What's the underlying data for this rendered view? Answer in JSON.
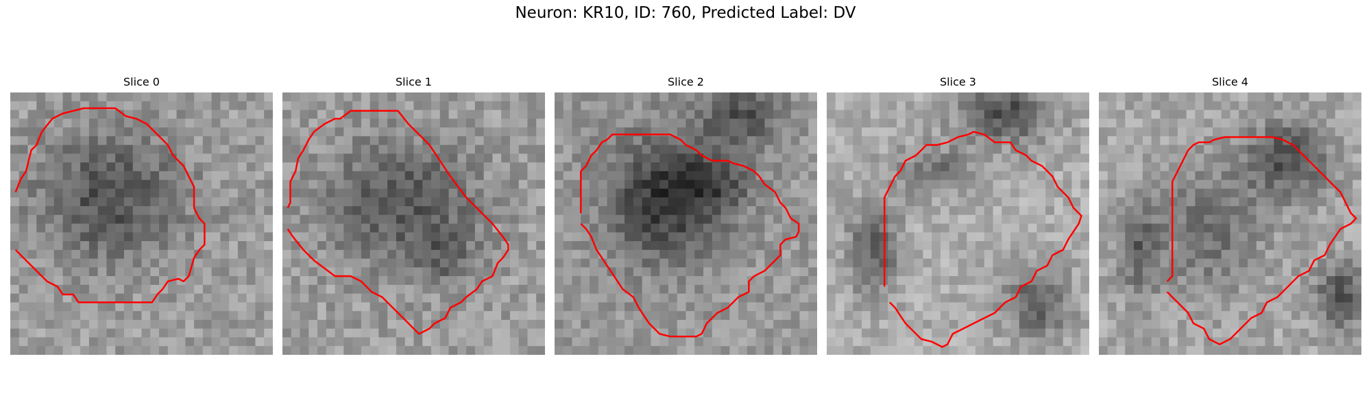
{
  "figure": {
    "title": "Neuron: KR10, ID: 760, Predicted Label: DV"
  },
  "style": {
    "contour_color": "#ff0000"
  },
  "panels": [
    {
      "title": "Slice 0",
      "image": {
        "grid": 30,
        "base_gray": 0.62,
        "blobs": [
          [
            0.38,
            0.4,
            0.36,
            0.32,
            0.3
          ]
        ],
        "noise": 0.22,
        "seed": 11
      },
      "contour": [
        [
          0.02,
          0.38
        ],
        [
          0.04,
          0.33
        ],
        [
          0.06,
          0.3
        ],
        [
          0.08,
          0.22
        ],
        [
          0.1,
          0.2
        ],
        [
          0.12,
          0.15
        ],
        [
          0.16,
          0.1
        ],
        [
          0.2,
          0.08
        ],
        [
          0.28,
          0.06
        ],
        [
          0.4,
          0.06
        ],
        [
          0.44,
          0.09
        ],
        [
          0.48,
          0.1
        ],
        [
          0.52,
          0.12
        ],
        [
          0.56,
          0.16
        ],
        [
          0.6,
          0.2
        ],
        [
          0.62,
          0.24
        ],
        [
          0.66,
          0.28
        ],
        [
          0.68,
          0.32
        ],
        [
          0.7,
          0.36
        ],
        [
          0.7,
          0.44
        ],
        [
          0.72,
          0.48
        ],
        [
          0.74,
          0.5
        ],
        [
          0.74,
          0.58
        ],
        [
          0.72,
          0.6
        ],
        [
          0.7,
          0.63
        ],
        [
          0.68,
          0.7
        ],
        [
          0.66,
          0.72
        ],
        [
          0.64,
          0.71
        ],
        [
          0.6,
          0.72
        ],
        [
          0.58,
          0.75
        ],
        [
          0.56,
          0.77
        ],
        [
          0.54,
          0.8
        ],
        [
          0.44,
          0.8
        ],
        [
          0.3,
          0.8
        ],
        [
          0.26,
          0.8
        ],
        [
          0.24,
          0.77
        ],
        [
          0.2,
          0.77
        ],
        [
          0.18,
          0.74
        ],
        [
          0.14,
          0.72
        ],
        [
          0.12,
          0.7
        ],
        [
          0.08,
          0.66
        ],
        [
          0.02,
          0.6
        ]
      ]
    },
    {
      "title": "Slice 1",
      "image": {
        "grid": 30,
        "base_gray": 0.62,
        "blobs": [
          [
            0.45,
            0.42,
            0.36,
            0.3,
            0.28
          ],
          [
            0.62,
            0.62,
            0.14,
            0.14,
            0.18
          ]
        ],
        "noise": 0.22,
        "seed": 23
      },
      "contour": [
        [
          0.02,
          0.44
        ],
        [
          0.03,
          0.42
        ],
        [
          0.03,
          0.34
        ],
        [
          0.05,
          0.3
        ],
        [
          0.06,
          0.25
        ],
        [
          0.08,
          0.22
        ],
        [
          0.1,
          0.18
        ],
        [
          0.12,
          0.15
        ],
        [
          0.16,
          0.12
        ],
        [
          0.2,
          0.1
        ],
        [
          0.22,
          0.1
        ],
        [
          0.26,
          0.07
        ],
        [
          0.4,
          0.07
        ],
        [
          0.44,
          0.07
        ],
        [
          0.48,
          0.12
        ],
        [
          0.52,
          0.16
        ],
        [
          0.56,
          0.2
        ],
        [
          0.6,
          0.26
        ],
        [
          0.64,
          0.32
        ],
        [
          0.7,
          0.4
        ],
        [
          0.76,
          0.46
        ],
        [
          0.8,
          0.5
        ],
        [
          0.84,
          0.55
        ],
        [
          0.86,
          0.58
        ],
        [
          0.86,
          0.6
        ],
        [
          0.84,
          0.63
        ],
        [
          0.82,
          0.65
        ],
        [
          0.8,
          0.7
        ],
        [
          0.76,
          0.72
        ],
        [
          0.74,
          0.75
        ],
        [
          0.7,
          0.78
        ],
        [
          0.68,
          0.8
        ],
        [
          0.64,
          0.82
        ],
        [
          0.62,
          0.86
        ],
        [
          0.58,
          0.88
        ],
        [
          0.56,
          0.9
        ],
        [
          0.52,
          0.92
        ],
        [
          0.5,
          0.9
        ],
        [
          0.46,
          0.86
        ],
        [
          0.42,
          0.82
        ],
        [
          0.38,
          0.78
        ],
        [
          0.34,
          0.76
        ],
        [
          0.3,
          0.72
        ],
        [
          0.26,
          0.7
        ],
        [
          0.2,
          0.7
        ],
        [
          0.16,
          0.67
        ],
        [
          0.12,
          0.64
        ],
        [
          0.08,
          0.6
        ],
        [
          0.04,
          0.55
        ],
        [
          0.02,
          0.52
        ]
      ]
    },
    {
      "title": "Slice 2",
      "image": {
        "grid": 30,
        "base_gray": 0.6,
        "blobs": [
          [
            0.42,
            0.4,
            0.28,
            0.3,
            0.4
          ],
          [
            0.62,
            0.35,
            0.16,
            0.14,
            0.22
          ],
          [
            0.72,
            0.08,
            0.2,
            0.14,
            0.28
          ]
        ],
        "noise": 0.2,
        "seed": 37
      },
      "contour": [
        [
          0.1,
          0.46
        ],
        [
          0.1,
          0.3
        ],
        [
          0.12,
          0.28
        ],
        [
          0.14,
          0.24
        ],
        [
          0.16,
          0.22
        ],
        [
          0.18,
          0.19
        ],
        [
          0.2,
          0.18
        ],
        [
          0.22,
          0.16
        ],
        [
          0.4,
          0.16
        ],
        [
          0.44,
          0.16
        ],
        [
          0.48,
          0.18
        ],
        [
          0.5,
          0.2
        ],
        [
          0.54,
          0.22
        ],
        [
          0.56,
          0.24
        ],
        [
          0.6,
          0.26
        ],
        [
          0.66,
          0.26
        ],
        [
          0.68,
          0.27
        ],
        [
          0.72,
          0.28
        ],
        [
          0.76,
          0.3
        ],
        [
          0.78,
          0.32
        ],
        [
          0.8,
          0.35
        ],
        [
          0.84,
          0.38
        ],
        [
          0.86,
          0.42
        ],
        [
          0.88,
          0.44
        ],
        [
          0.9,
          0.48
        ],
        [
          0.93,
          0.5
        ],
        [
          0.93,
          0.53
        ],
        [
          0.92,
          0.55
        ],
        [
          0.88,
          0.56
        ],
        [
          0.86,
          0.58
        ],
        [
          0.86,
          0.62
        ],
        [
          0.84,
          0.64
        ],
        [
          0.82,
          0.66
        ],
        [
          0.8,
          0.68
        ],
        [
          0.76,
          0.7
        ],
        [
          0.74,
          0.72
        ],
        [
          0.74,
          0.76
        ],
        [
          0.7,
          0.78
        ],
        [
          0.68,
          0.8
        ],
        [
          0.66,
          0.82
        ],
        [
          0.62,
          0.84
        ],
        [
          0.6,
          0.86
        ],
        [
          0.58,
          0.88
        ],
        [
          0.56,
          0.92
        ],
        [
          0.54,
          0.93
        ],
        [
          0.44,
          0.93
        ],
        [
          0.4,
          0.92
        ],
        [
          0.36,
          0.88
        ],
        [
          0.34,
          0.85
        ],
        [
          0.32,
          0.82
        ],
        [
          0.3,
          0.78
        ],
        [
          0.26,
          0.75
        ],
        [
          0.24,
          0.72
        ],
        [
          0.2,
          0.66
        ],
        [
          0.16,
          0.6
        ],
        [
          0.14,
          0.55
        ],
        [
          0.12,
          0.52
        ],
        [
          0.1,
          0.5
        ]
      ]
    },
    {
      "title": "Slice 3",
      "image": {
        "grid": 30,
        "base_gray": 0.68,
        "blobs": [
          [
            0.18,
            0.6,
            0.12,
            0.22,
            0.3
          ],
          [
            0.68,
            0.08,
            0.22,
            0.14,
            0.38
          ],
          [
            0.8,
            0.8,
            0.16,
            0.18,
            0.3
          ],
          [
            0.42,
            0.3,
            0.2,
            0.12,
            0.22
          ]
        ],
        "noise": 0.2,
        "seed": 51
      },
      "contour": [
        [
          0.22,
          0.74
        ],
        [
          0.22,
          0.4
        ],
        [
          0.26,
          0.32
        ],
        [
          0.28,
          0.3
        ],
        [
          0.3,
          0.26
        ],
        [
          0.34,
          0.24
        ],
        [
          0.36,
          0.22
        ],
        [
          0.38,
          0.2
        ],
        [
          0.42,
          0.2
        ],
        [
          0.46,
          0.19
        ],
        [
          0.5,
          0.17
        ],
        [
          0.54,
          0.16
        ],
        [
          0.56,
          0.15
        ],
        [
          0.6,
          0.16
        ],
        [
          0.64,
          0.19
        ],
        [
          0.7,
          0.19
        ],
        [
          0.72,
          0.22
        ],
        [
          0.76,
          0.24
        ],
        [
          0.78,
          0.26
        ],
        [
          0.82,
          0.28
        ],
        [
          0.86,
          0.32
        ],
        [
          0.88,
          0.36
        ],
        [
          0.92,
          0.4
        ],
        [
          0.94,
          0.44
        ],
        [
          0.97,
          0.47
        ],
        [
          0.96,
          0.5
        ],
        [
          0.94,
          0.53
        ],
        [
          0.92,
          0.56
        ],
        [
          0.9,
          0.6
        ],
        [
          0.86,
          0.62
        ],
        [
          0.84,
          0.66
        ],
        [
          0.8,
          0.68
        ],
        [
          0.78,
          0.72
        ],
        [
          0.74,
          0.74
        ],
        [
          0.72,
          0.78
        ],
        [
          0.68,
          0.8
        ],
        [
          0.64,
          0.84
        ],
        [
          0.6,
          0.86
        ],
        [
          0.56,
          0.88
        ],
        [
          0.52,
          0.9
        ],
        [
          0.48,
          0.92
        ],
        [
          0.46,
          0.96
        ],
        [
          0.44,
          0.97
        ],
        [
          0.4,
          0.95
        ],
        [
          0.36,
          0.94
        ],
        [
          0.32,
          0.9
        ],
        [
          0.3,
          0.88
        ],
        [
          0.28,
          0.85
        ],
        [
          0.26,
          0.82
        ],
        [
          0.24,
          0.8
        ]
      ]
    },
    {
      "title": "Slice 4",
      "image": {
        "grid": 30,
        "base_gray": 0.66,
        "blobs": [
          [
            0.42,
            0.52,
            0.26,
            0.32,
            0.22
          ],
          [
            0.72,
            0.25,
            0.2,
            0.18,
            0.34
          ],
          [
            0.92,
            0.78,
            0.12,
            0.16,
            0.35
          ],
          [
            0.15,
            0.6,
            0.1,
            0.22,
            0.26
          ]
        ],
        "noise": 0.2,
        "seed": 67
      },
      "contour": [
        [
          0.26,
          0.72
        ],
        [
          0.28,
          0.7
        ],
        [
          0.28,
          0.34
        ],
        [
          0.3,
          0.3
        ],
        [
          0.32,
          0.26
        ],
        [
          0.34,
          0.22
        ],
        [
          0.36,
          0.2
        ],
        [
          0.38,
          0.19
        ],
        [
          0.42,
          0.19
        ],
        [
          0.44,
          0.18
        ],
        [
          0.48,
          0.17
        ],
        [
          0.6,
          0.17
        ],
        [
          0.66,
          0.17
        ],
        [
          0.7,
          0.18
        ],
        [
          0.74,
          0.2
        ],
        [
          0.76,
          0.22
        ],
        [
          0.78,
          0.24
        ],
        [
          0.8,
          0.26
        ],
        [
          0.84,
          0.3
        ],
        [
          0.88,
          0.34
        ],
        [
          0.9,
          0.36
        ],
        [
          0.92,
          0.38
        ],
        [
          0.94,
          0.42
        ],
        [
          0.96,
          0.46
        ],
        [
          0.98,
          0.48
        ],
        [
          0.96,
          0.5
        ],
        [
          0.92,
          0.52
        ],
        [
          0.9,
          0.55
        ],
        [
          0.88,
          0.58
        ],
        [
          0.86,
          0.62
        ],
        [
          0.82,
          0.64
        ],
        [
          0.8,
          0.68
        ],
        [
          0.76,
          0.7
        ],
        [
          0.74,
          0.72
        ],
        [
          0.7,
          0.76
        ],
        [
          0.68,
          0.78
        ],
        [
          0.64,
          0.8
        ],
        [
          0.62,
          0.84
        ],
        [
          0.58,
          0.86
        ],
        [
          0.54,
          0.9
        ],
        [
          0.5,
          0.94
        ],
        [
          0.46,
          0.96
        ],
        [
          0.42,
          0.94
        ],
        [
          0.4,
          0.9
        ],
        [
          0.36,
          0.88
        ],
        [
          0.34,
          0.84
        ],
        [
          0.32,
          0.82
        ],
        [
          0.3,
          0.8
        ],
        [
          0.28,
          0.78
        ],
        [
          0.26,
          0.76
        ]
      ]
    }
  ]
}
